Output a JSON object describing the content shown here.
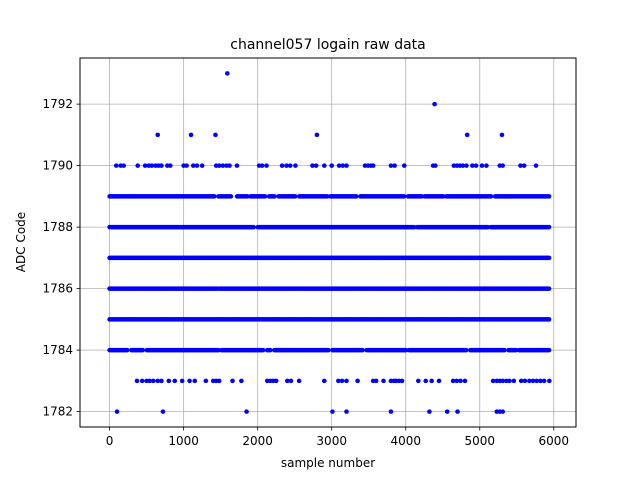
{
  "chart_data": {
    "type": "scatter",
    "title": "channel057 logain raw data",
    "xlabel": "sample number",
    "ylabel": "ADC Code",
    "xlim": [
      -400,
      6300
    ],
    "ylim": [
      1781.5,
      1793.5
    ],
    "xticks": [
      0,
      1000,
      2000,
      3000,
      4000,
      5000,
      6000
    ],
    "yticks": [
      1782,
      1784,
      1786,
      1788,
      1790,
      1792
    ],
    "grid": true,
    "marker_color": "#0000ff",
    "series": [
      {
        "points": [
          [
            100,
            1782
          ],
          [
            720,
            1782
          ],
          [
            1850,
            1782
          ],
          [
            3010,
            1782
          ],
          [
            3200,
            1782
          ],
          [
            3800,
            1782
          ],
          [
            4320,
            1782
          ],
          [
            4560,
            1782
          ],
          [
            4700,
            1782
          ],
          [
            5230,
            1782
          ],
          [
            5270,
            1782
          ],
          [
            5310,
            1782
          ],
          [
            370,
            1783
          ],
          [
            440,
            1783
          ],
          [
            500,
            1783
          ],
          [
            540,
            1783
          ],
          [
            590,
            1783
          ],
          [
            650,
            1783
          ],
          [
            700,
            1783
          ],
          [
            800,
            1783
          ],
          [
            880,
            1783
          ],
          [
            980,
            1783
          ],
          [
            1080,
            1783
          ],
          [
            1150,
            1783
          ],
          [
            1300,
            1783
          ],
          [
            1400,
            1783
          ],
          [
            1440,
            1783
          ],
          [
            1480,
            1783
          ],
          [
            1660,
            1783
          ],
          [
            1780,
            1783
          ],
          [
            2130,
            1783
          ],
          [
            2170,
            1783
          ],
          [
            2210,
            1783
          ],
          [
            2250,
            1783
          ],
          [
            2400,
            1783
          ],
          [
            2450,
            1783
          ],
          [
            2560,
            1783
          ],
          [
            2900,
            1783
          ],
          [
            3090,
            1783
          ],
          [
            3140,
            1783
          ],
          [
            3200,
            1783
          ],
          [
            3350,
            1783
          ],
          [
            3560,
            1783
          ],
          [
            3600,
            1783
          ],
          [
            3700,
            1783
          ],
          [
            3800,
            1783
          ],
          [
            3840,
            1783
          ],
          [
            3870,
            1783
          ],
          [
            3910,
            1783
          ],
          [
            3950,
            1783
          ],
          [
            4170,
            1783
          ],
          [
            4270,
            1783
          ],
          [
            4350,
            1783
          ],
          [
            4450,
            1783
          ],
          [
            4640,
            1783
          ],
          [
            4690,
            1783
          ],
          [
            4740,
            1783
          ],
          [
            4800,
            1783
          ],
          [
            5180,
            1783
          ],
          [
            5230,
            1783
          ],
          [
            5270,
            1783
          ],
          [
            5310,
            1783
          ],
          [
            5360,
            1783
          ],
          [
            5400,
            1783
          ],
          [
            5460,
            1783
          ],
          [
            5560,
            1783
          ],
          [
            5610,
            1783
          ],
          [
            5670,
            1783
          ],
          [
            5720,
            1783
          ],
          [
            5770,
            1783
          ],
          [
            5820,
            1783
          ],
          [
            5870,
            1783
          ],
          [
            5940,
            1783
          ],
          [
            1590,
            1793
          ],
          [
            4390,
            1792
          ],
          [
            650,
            1791
          ],
          [
            1100,
            1791
          ],
          [
            1430,
            1791
          ],
          [
            2800,
            1791
          ],
          [
            4830,
            1791
          ],
          [
            5300,
            1791
          ],
          [
            90,
            1790
          ],
          [
            150,
            1790
          ],
          [
            190,
            1790
          ],
          [
            380,
            1790
          ],
          [
            480,
            1790
          ],
          [
            530,
            1790
          ],
          [
            570,
            1790
          ],
          [
            620,
            1790
          ],
          [
            660,
            1790
          ],
          [
            700,
            1790
          ],
          [
            780,
            1790
          ],
          [
            820,
            1790
          ],
          [
            1000,
            1790
          ],
          [
            1040,
            1790
          ],
          [
            1130,
            1790
          ],
          [
            1180,
            1790
          ],
          [
            1250,
            1790
          ],
          [
            1440,
            1790
          ],
          [
            1480,
            1790
          ],
          [
            1530,
            1790
          ],
          [
            1580,
            1790
          ],
          [
            1620,
            1790
          ],
          [
            1720,
            1790
          ],
          [
            2020,
            1790
          ],
          [
            2060,
            1790
          ],
          [
            2120,
            1790
          ],
          [
            2330,
            1790
          ],
          [
            2390,
            1790
          ],
          [
            2440,
            1790
          ],
          [
            2510,
            1790
          ],
          [
            2740,
            1790
          ],
          [
            2790,
            1790
          ],
          [
            2900,
            1790
          ],
          [
            3000,
            1790
          ],
          [
            3100,
            1790
          ],
          [
            3150,
            1790
          ],
          [
            3200,
            1790
          ],
          [
            3450,
            1790
          ],
          [
            3490,
            1790
          ],
          [
            3530,
            1790
          ],
          [
            3560,
            1790
          ],
          [
            3800,
            1790
          ],
          [
            3850,
            1790
          ],
          [
            3980,
            1790
          ],
          [
            4370,
            1790
          ],
          [
            4400,
            1790
          ],
          [
            4650,
            1790
          ],
          [
            4690,
            1790
          ],
          [
            4730,
            1790
          ],
          [
            4770,
            1790
          ],
          [
            4820,
            1790
          ],
          [
            4900,
            1790
          ],
          [
            4950,
            1790
          ],
          [
            5030,
            1790
          ],
          [
            5090,
            1790
          ],
          [
            5270,
            1790
          ],
          [
            5310,
            1790
          ],
          [
            5550,
            1790
          ],
          [
            5600,
            1790
          ],
          [
            5760,
            1790
          ]
        ],
        "dense_bands": [
          {
            "y": 1789,
            "x": [
              0,
              5940
            ],
            "gaps": [
              [
                1420,
                1460
              ],
              [
                1650,
                1720
              ],
              [
                1870,
                1900
              ],
              [
                2110,
                2150
              ],
              [
                2240,
                2280
              ],
              [
                2520,
                2560
              ],
              [
                2950,
                2980
              ],
              [
                3340,
                3380
              ],
              [
                3980,
                4020
              ],
              [
                4220,
                4250
              ],
              [
                4510,
                4540
              ],
              [
                5160,
                5200
              ]
            ]
          },
          {
            "y": 1788,
            "x": [
              0,
              5940
            ],
            "gaps": [
              [
                1960,
                1990
              ],
              [
                4120,
                4150
              ],
              [
                5120,
                5150
              ]
            ]
          },
          {
            "y": 1787,
            "x": [
              0,
              5940
            ],
            "gaps": []
          },
          {
            "y": 1786,
            "x": [
              0,
              5940
            ],
            "gaps": [
              [
                1460,
                1480
              ]
            ]
          },
          {
            "y": 1785,
            "x": [
              0,
              5940
            ],
            "gaps": []
          },
          {
            "y": 1784,
            "x": [
              0,
              5940
            ],
            "gaps": [
              [
                250,
                290
              ],
              [
                460,
                500
              ],
              [
                1480,
                1510
              ],
              [
                2080,
                2120
              ],
              [
                2180,
                2220
              ],
              [
                2960,
                3000
              ],
              [
                3420,
                3460
              ],
              [
                4010,
                4040
              ],
              [
                4830,
                4870
              ],
              [
                5340,
                5380
              ],
              [
                5490,
                5520
              ]
            ]
          }
        ]
      }
    ]
  }
}
